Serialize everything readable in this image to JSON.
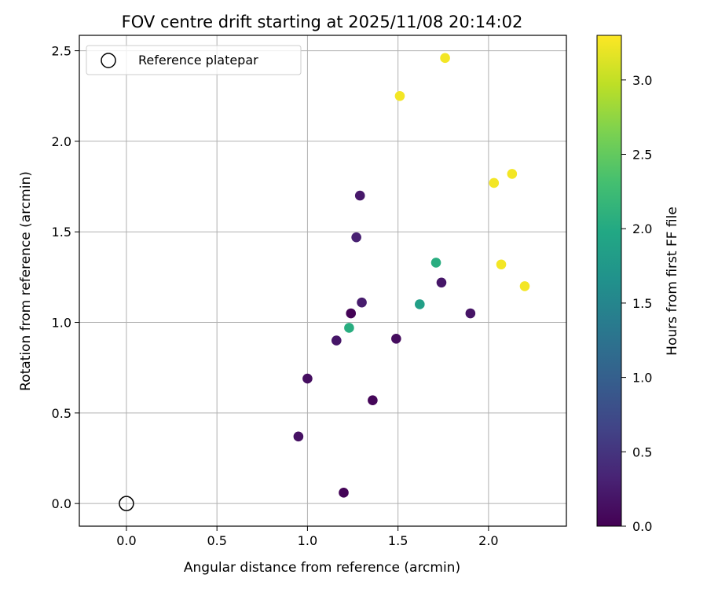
{
  "chart_data": {
    "type": "scatter",
    "title": "FOV centre drift starting at 2025/11/08 20:14:02",
    "xlabel": "Angular distance from reference (arcmin)",
    "ylabel": "Rotation from reference (arcmin)",
    "xlim": [
      -0.26,
      2.43
    ],
    "ylim": [
      -0.125,
      2.585
    ],
    "xticks": [
      0.0,
      0.5,
      1.0,
      1.5,
      2.0
    ],
    "xtick_labels": [
      "0.0",
      "0.5",
      "1.0",
      "1.5",
      "2.0"
    ],
    "yticks": [
      0.0,
      0.5,
      1.0,
      1.5,
      2.0,
      2.5
    ],
    "ytick_labels": [
      "0.0",
      "0.5",
      "1.0",
      "1.5",
      "2.0",
      "2.5"
    ],
    "grid": true,
    "legend": {
      "location": "upper-left",
      "entries": [
        {
          "label": "Reference platepar",
          "marker": "open-circle",
          "color": "#000000"
        }
      ]
    },
    "reference_point": {
      "x": 0.0,
      "y": 0.0
    },
    "colorbar": {
      "label": "Hours from first FF file",
      "colormap": "viridis",
      "range": [
        0.0,
        3.3
      ],
      "ticks": [
        0.0,
        0.5,
        1.0,
        1.5,
        2.0,
        2.5,
        3.0
      ],
      "tick_labels": [
        "0.0",
        "0.5",
        "1.0",
        "1.5",
        "2.0",
        "2.5",
        "3.0"
      ]
    },
    "points": [
      {
        "x": 1.2,
        "y": 0.06,
        "hours": 0.03
      },
      {
        "x": 0.95,
        "y": 0.37,
        "hours": 0.15
      },
      {
        "x": 1.36,
        "y": 0.57,
        "hours": 0.05
      },
      {
        "x": 1.0,
        "y": 0.69,
        "hours": 0.12
      },
      {
        "x": 1.16,
        "y": 0.9,
        "hours": 0.2
      },
      {
        "x": 1.24,
        "y": 1.05,
        "hours": 0.02
      },
      {
        "x": 1.49,
        "y": 0.91,
        "hours": 0.1
      },
      {
        "x": 1.3,
        "y": 1.11,
        "hours": 0.25
      },
      {
        "x": 1.27,
        "y": 1.47,
        "hours": 0.3
      },
      {
        "x": 1.29,
        "y": 1.7,
        "hours": 0.22
      },
      {
        "x": 1.74,
        "y": 1.22,
        "hours": 0.2
      },
      {
        "x": 1.9,
        "y": 1.05,
        "hours": 0.18
      },
      {
        "x": 1.62,
        "y": 1.1,
        "hours": 1.85
      },
      {
        "x": 1.23,
        "y": 0.97,
        "hours": 2.05
      },
      {
        "x": 1.71,
        "y": 1.33,
        "hours": 2.05
      },
      {
        "x": 1.51,
        "y": 2.25,
        "hours": 3.25
      },
      {
        "x": 1.76,
        "y": 2.46,
        "hours": 3.25
      },
      {
        "x": 2.03,
        "y": 1.77,
        "hours": 3.25
      },
      {
        "x": 2.13,
        "y": 1.82,
        "hours": 3.25
      },
      {
        "x": 2.07,
        "y": 1.32,
        "hours": 3.25
      },
      {
        "x": 2.2,
        "y": 1.2,
        "hours": 3.25
      }
    ]
  }
}
